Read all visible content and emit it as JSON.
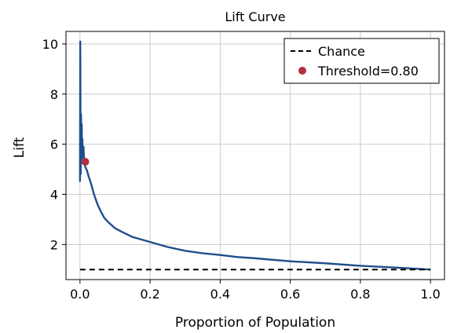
{
  "chart_data": {
    "type": "line",
    "title": "Lift Curve",
    "xlabel": "Proportion of Population",
    "ylabel": "Lift",
    "xlim": [
      -0.04,
      1.04
    ],
    "ylim": [
      0.6,
      10.5
    ],
    "xticks": [
      0.0,
      0.2,
      0.4,
      0.6,
      0.8,
      1.0
    ],
    "xtick_labels": [
      "0.0",
      "0.2",
      "0.4",
      "0.6",
      "0.8",
      "1.0"
    ],
    "yticks": [
      2,
      4,
      6,
      8,
      10
    ],
    "ytick_labels": [
      "2",
      "4",
      "6",
      "8",
      "10"
    ],
    "grid": true,
    "legend_position": "top-right",
    "legend": [
      "Chance",
      "Threshold=0.80"
    ],
    "series": [
      {
        "name": "",
        "style": "line",
        "color": "#1f4e8c",
        "x": [
          0.0,
          0.0008,
          0.0015,
          0.002,
          0.003,
          0.004,
          0.005,
          0.006,
          0.007,
          0.008,
          0.01,
          0.012,
          0.015,
          0.02,
          0.025,
          0.03,
          0.04,
          0.05,
          0.06,
          0.07,
          0.08,
          0.1,
          0.12,
          0.15,
          0.2,
          0.25,
          0.3,
          0.35,
          0.4,
          0.45,
          0.5,
          0.6,
          0.7,
          0.8,
          0.9,
          1.0
        ],
        "y": [
          4.5,
          10.1,
          6.5,
          4.8,
          7.2,
          5.6,
          6.8,
          5.5,
          6.2,
          5.3,
          5.9,
          5.3,
          5.1,
          4.95,
          4.7,
          4.5,
          4.0,
          3.6,
          3.3,
          3.05,
          2.9,
          2.65,
          2.5,
          2.3,
          2.1,
          1.9,
          1.75,
          1.65,
          1.58,
          1.5,
          1.45,
          1.33,
          1.25,
          1.15,
          1.08,
          1.0
        ]
      },
      {
        "name": "Chance",
        "style": "dashed",
        "color": "#000000",
        "x": [
          0.0,
          1.0
        ],
        "y": [
          1.0,
          1.0
        ]
      }
    ],
    "points": [
      {
        "name": "Threshold=0.80",
        "color": "#b03040",
        "x": 0.015,
        "y": 5.3
      }
    ]
  }
}
